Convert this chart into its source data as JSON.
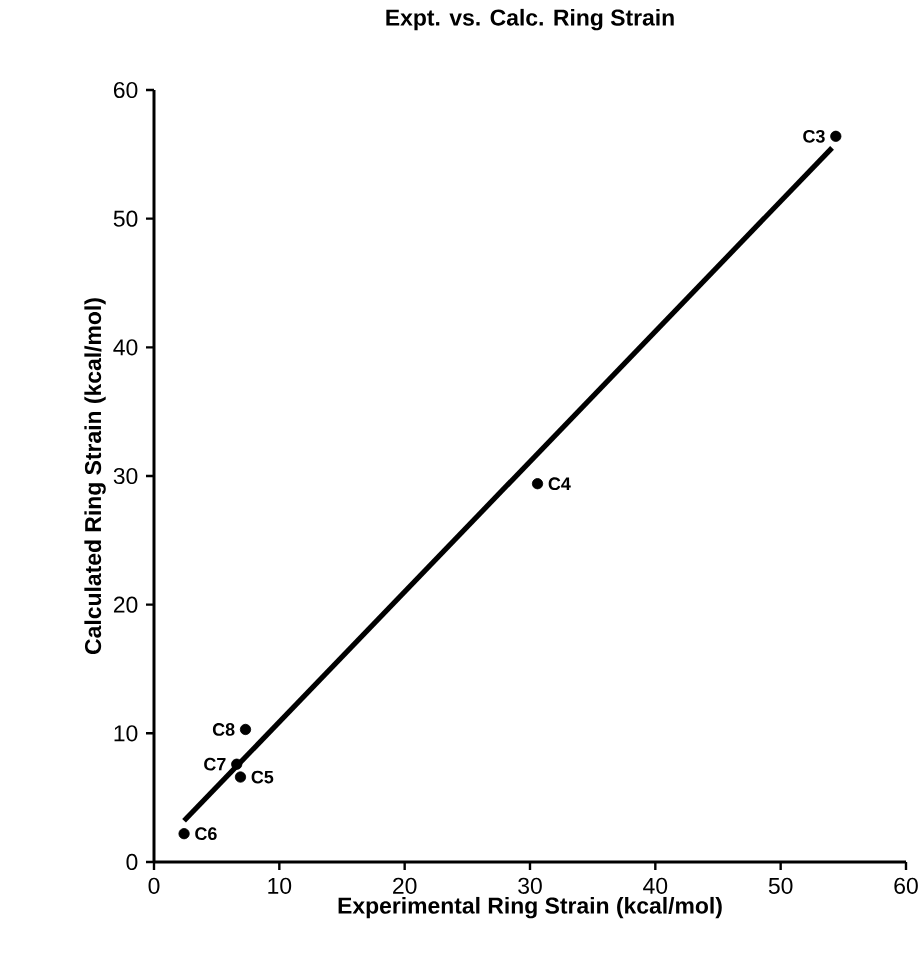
{
  "chart_data": {
    "type": "scatter",
    "title": "Expt. vs. Calc. Ring Strain",
    "xlabel": "Experimental Ring Strain (kcal/mol)",
    "ylabel": "Calculated Ring Strain (kcal/mol)",
    "x": [
      54.4,
      30.6,
      7.3,
      6.6,
      6.9,
      2.4
    ],
    "series": [
      {
        "color": "#000000",
        "marker": "circle",
        "values": [
          56.4,
          29.4,
          10.3,
          7.6,
          6.6,
          2.2
        ]
      },
      {
        "type": "line",
        "color": "#000000",
        "x": [
          2.4,
          54.1
        ],
        "values": [
          3.2,
          55.5
        ]
      }
    ],
    "annotations": [
      {
        "text": "C3",
        "x": 54.4,
        "y": 56.4
      },
      {
        "text": "C4",
        "x": 30.6,
        "y": 29.4
      },
      {
        "text": "C8",
        "x": 7.3,
        "y": 10.3
      },
      {
        "text": "C7",
        "x": 6.6,
        "y": 7.6
      },
      {
        "text": "C5",
        "x": 6.9,
        "y": 6.6
      },
      {
        "text": "C6",
        "x": 2.4,
        "y": 2.2
      }
    ],
    "xlim": [
      0,
      60
    ],
    "ylim": [
      0,
      60
    ],
    "xticks": [
      0,
      10,
      20,
      30,
      40,
      50,
      60
    ],
    "yticks": [
      0,
      10,
      20,
      30,
      40,
      50,
      60
    ],
    "grid": false
  }
}
